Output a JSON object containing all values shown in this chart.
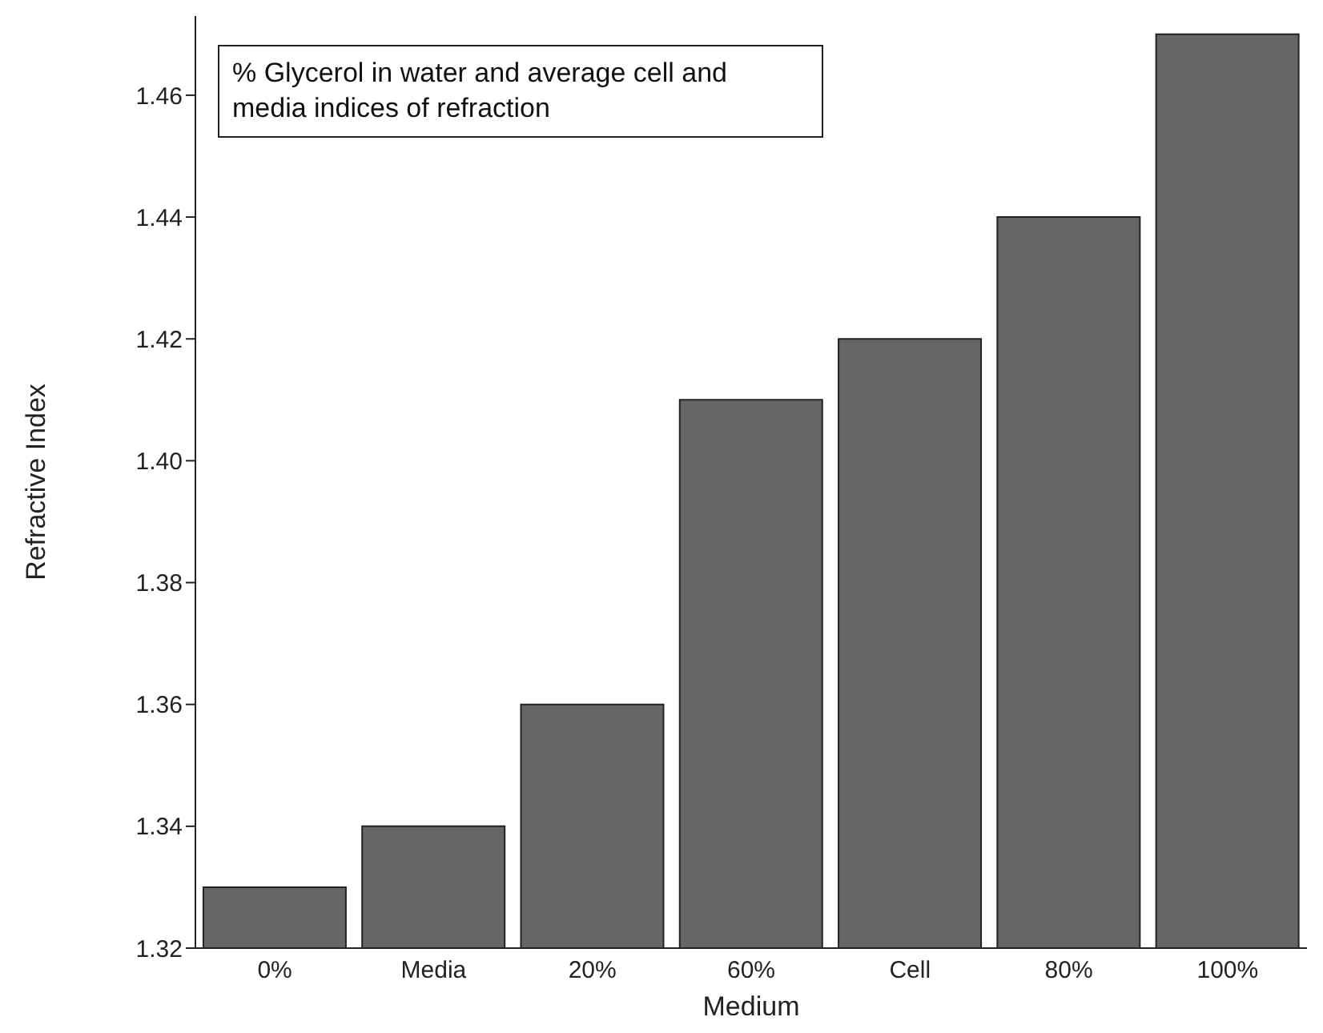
{
  "chart_data": {
    "type": "bar",
    "title": "% Glycerol in water and average cell and media indices of refraction",
    "xlabel": "Medium",
    "ylabel": "Refractive Index",
    "categories": [
      "0%",
      "Media",
      "20%",
      "60%",
      "Cell",
      "80%",
      "100%"
    ],
    "values": [
      1.33,
      1.34,
      1.36,
      1.41,
      1.42,
      1.44,
      1.47
    ],
    "color": "#666666",
    "ylim": [
      1.32,
      1.473
    ],
    "yticks": [
      {
        "value": 1.32,
        "label": "1.32"
      },
      {
        "value": 1.34,
        "label": "1.34"
      },
      {
        "value": 1.36,
        "label": "1.36"
      },
      {
        "value": 1.38,
        "label": "1.38"
      },
      {
        "value": 1.4,
        "label": "1.40"
      },
      {
        "value": 1.42,
        "label": "1.42"
      },
      {
        "value": 1.44,
        "label": "1.44"
      },
      {
        "value": 1.46,
        "label": "1.46"
      }
    ],
    "grid": false,
    "legend": false
  }
}
